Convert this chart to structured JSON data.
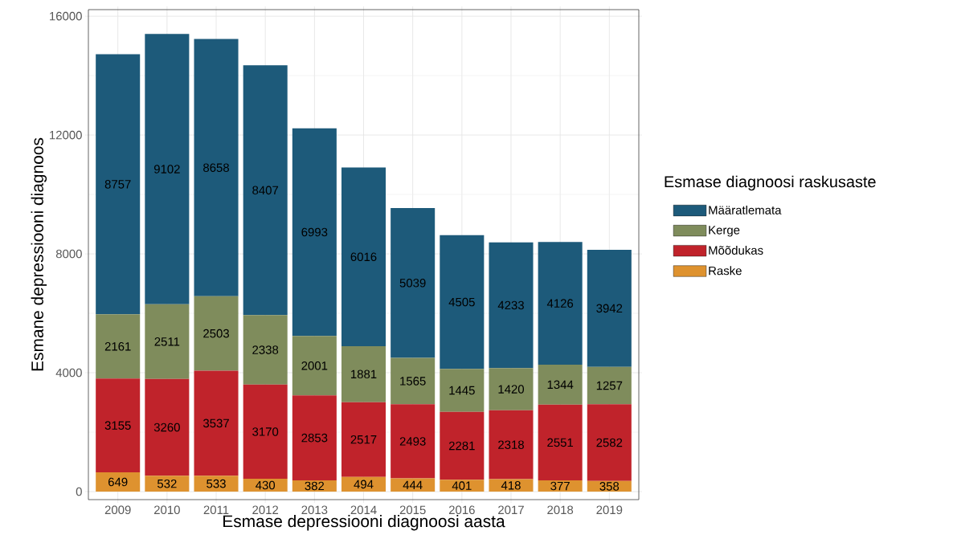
{
  "chart_data": {
    "type": "bar",
    "stacked": true,
    "xlabel": "Esmase depressiooni diagnoosi aasta",
    "ylabel": "Esmane depressiooni diagnoos",
    "legend_title": "Esmase diagnoosi raskusaste",
    "categories": [
      "2009",
      "2010",
      "2011",
      "2012",
      "2013",
      "2014",
      "2015",
      "2016",
      "2017",
      "2018",
      "2019"
    ],
    "series": [
      {
        "name": "Raske",
        "color": "#de922f",
        "values": [
          649,
          532,
          533,
          430,
          382,
          494,
          444,
          401,
          418,
          377,
          358
        ]
      },
      {
        "name": "Mõõdukas",
        "color": "#c0232b",
        "values": [
          3155,
          3260,
          3537,
          3170,
          2853,
          2517,
          2493,
          2281,
          2318,
          2551,
          2582
        ]
      },
      {
        "name": "Kerge",
        "color": "#7f8c5c",
        "values": [
          2161,
          2511,
          2503,
          2338,
          2001,
          1881,
          1565,
          1445,
          1420,
          1344,
          1257
        ]
      },
      {
        "name": "Määratlemata",
        "color": "#1d5a7a",
        "values": [
          8757,
          9102,
          8658,
          8407,
          6993,
          6016,
          5039,
          4505,
          4233,
          4126,
          3942
        ]
      }
    ],
    "ylim": [
      -270,
      16220
    ],
    "yticks": [
      0,
      4000,
      8000,
      12000,
      16000
    ],
    "grid": true,
    "legend": "right",
    "data_labels": true
  }
}
